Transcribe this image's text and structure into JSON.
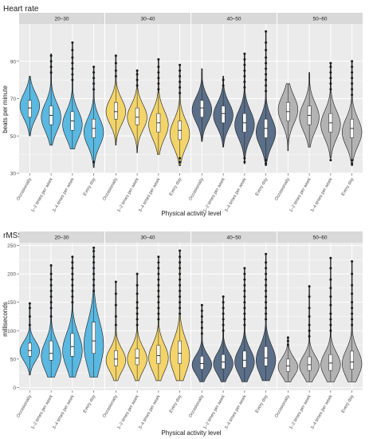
{
  "chart_data": [
    {
      "type": "violin",
      "title": "Heart rate",
      "xlabel": "Physical activity level",
      "ylabel": "beats per minute",
      "ylim": [
        30,
        110
      ],
      "yticks": [
        30,
        50,
        70,
        90
      ],
      "categories": [
        "Occasionally",
        "1–2 times per week",
        "3–4 times per week",
        "Every day"
      ],
      "facets": [
        {
          "label": "20–30",
          "color": "#5bb8e0",
          "groups": [
            {
              "min": 50,
              "q1": 60,
              "median": 65,
              "q3": 69,
              "max": 82,
              "mode": 66,
              "outliers": []
            },
            {
              "min": 45,
              "q1": 56,
              "median": 61,
              "q3": 66,
              "max": 94,
              "mode": 60,
              "outliers": [
                84,
                87,
                90,
                93
              ]
            },
            {
              "min": 43,
              "q1": 53,
              "median": 58,
              "q3": 63,
              "max": 100,
              "mode": 56,
              "outliers": [
                80,
                83,
                86,
                89,
                92,
                96,
                100
              ]
            },
            {
              "min": 33,
              "q1": 49,
              "median": 54,
              "q3": 59,
              "max": 87,
              "mode": 52,
              "outliers": [
                36,
                75,
                78,
                81,
                84,
                87
              ]
            }
          ]
        },
        {
          "label": "30–40",
          "color": "#f2d46b",
          "groups": [
            {
              "min": 45,
              "q1": 59,
              "median": 63,
              "q3": 68,
              "max": 93,
              "mode": 63,
              "outliers": [
                82,
                85,
                89,
                93
              ]
            },
            {
              "min": 41,
              "q1": 56,
              "median": 60,
              "q3": 65,
              "max": 85,
              "mode": 60,
              "outliers": [
                77,
                80,
                83,
                85
              ]
            },
            {
              "min": 40,
              "q1": 52,
              "median": 57,
              "q3": 62,
              "max": 91,
              "mode": 56,
              "outliers": [
                75,
                78,
                81,
                84,
                87,
                91
              ]
            },
            {
              "min": 34,
              "q1": 48,
              "median": 53,
              "q3": 58,
              "max": 88,
              "mode": 51,
              "outliers": [
                36,
                38,
                73,
                76,
                79,
                82,
                85,
                88
              ]
            }
          ]
        },
        {
          "label": "40–50",
          "color": "#5b6f89",
          "groups": [
            {
              "min": 47,
              "q1": 60,
              "median": 65,
              "q3": 69,
              "max": 86,
              "mode": 64,
              "outliers": []
            },
            {
              "min": 44,
              "q1": 57,
              "median": 62,
              "q3": 66,
              "max": 82,
              "mode": 61,
              "outliers": [
                77,
                80
              ]
            },
            {
              "min": 35,
              "q1": 52,
              "median": 57,
              "q3": 62,
              "max": 94,
              "mode": 56,
              "outliers": [
                36,
                38,
                76,
                79,
                82,
                85,
                88,
                91,
                94
              ]
            },
            {
              "min": 34,
              "q1": 49,
              "median": 54,
              "q3": 59,
              "max": 106,
              "mode": 52,
              "outliers": [
                35,
                37,
                74,
                77,
                80,
                83,
                86,
                89,
                92,
                96,
                100,
                106
              ]
            }
          ]
        },
        {
          "label": "50–60",
          "color": "#b3b3b3",
          "groups": [
            {
              "min": 42,
              "q1": 58,
              "median": 63,
              "q3": 68,
              "max": 78,
              "mode": 64,
              "outliers": []
            },
            {
              "min": 44,
              "q1": 56,
              "median": 61,
              "q3": 66,
              "max": 84,
              "mode": 60,
              "outliers": []
            },
            {
              "min": 38,
              "q1": 52,
              "median": 57,
              "q3": 62,
              "max": 89,
              "mode": 56,
              "outliers": [
                37,
                75,
                78,
                81,
                84,
                87,
                89
              ]
            },
            {
              "min": 34,
              "q1": 49,
              "median": 54,
              "q3": 59,
              "max": 90,
              "mode": 52,
              "outliers": [
                35,
                37,
                72,
                75,
                78,
                81,
                84,
                87,
                90
              ]
            }
          ]
        }
      ]
    },
    {
      "type": "violin",
      "title": "rMSSD",
      "xlabel": "Physical activity level",
      "ylabel": "milliseconds",
      "ylim": [
        -5,
        255
      ],
      "yticks": [
        0,
        50,
        100,
        150,
        200,
        250
      ],
      "categories": [
        "Occasionally",
        "1–2 times per week",
        "3–4 times per week",
        "Every day"
      ],
      "facets": [
        {
          "label": "20–30",
          "color": "#5bb8e0",
          "groups": [
            {
              "min": 22,
              "q1": 55,
              "median": 65,
              "q3": 78,
              "max": 148,
              "mode": 64,
              "outliers": [
                110,
                125,
                140,
                148
              ]
            },
            {
              "min": 18,
              "q1": 48,
              "median": 60,
              "q3": 82,
              "max": 215,
              "mode": 55,
              "outliers": [
                125,
                140,
                150,
                160,
                170,
                180,
                190,
                200,
                215
              ]
            },
            {
              "min": 18,
              "q1": 55,
              "median": 72,
              "q3": 95,
              "max": 230,
              "mode": 65,
              "outliers": [
                150,
                160,
                170,
                180,
                190,
                200,
                210,
                220,
                230
              ]
            },
            {
              "min": 18,
              "q1": 60,
              "median": 82,
              "q3": 115,
              "max": 246,
              "mode": 75,
              "outliers": [
                170,
                180,
                190,
                200,
                210,
                220,
                230,
                240,
                246
              ]
            }
          ]
        },
        {
          "label": "30–40",
          "color": "#f2d46b",
          "groups": [
            {
              "min": 12,
              "q1": 38,
              "median": 50,
              "q3": 65,
              "max": 186,
              "mode": 48,
              "outliers": [
                110,
                125,
                145,
                165,
                186
              ]
            },
            {
              "min": 12,
              "q1": 40,
              "median": 52,
              "q3": 68,
              "max": 200,
              "mode": 50,
              "outliers": [
                110,
                120,
                130,
                140,
                150,
                165,
                180,
                200
              ]
            },
            {
              "min": 12,
              "q1": 42,
              "median": 56,
              "q3": 74,
              "max": 230,
              "mode": 52,
              "outliers": [
                120,
                130,
                140,
                150,
                160,
                170,
                180,
                190,
                200,
                210,
                220,
                230
              ]
            },
            {
              "min": 12,
              "q1": 42,
              "median": 60,
              "q3": 82,
              "max": 241,
              "mode": 55,
              "outliers": [
                130,
                140,
                150,
                160,
                170,
                180,
                190,
                200,
                210,
                220,
                230,
                241
              ]
            }
          ]
        },
        {
          "label": "40–50",
          "color": "#5b6f89",
          "groups": [
            {
              "min": 10,
              "q1": 32,
              "median": 42,
              "q3": 55,
              "max": 145,
              "mode": 40,
              "outliers": [
                95,
                105,
                115,
                125,
                135,
                145
              ]
            },
            {
              "min": 10,
              "q1": 33,
              "median": 45,
              "q3": 58,
              "max": 160,
              "mode": 42,
              "outliers": [
                100,
                110,
                120,
                130,
                140,
                150,
                160
              ]
            },
            {
              "min": 10,
              "q1": 35,
              "median": 48,
              "q3": 64,
              "max": 210,
              "mode": 45,
              "outliers": [
                110,
                120,
                130,
                140,
                150,
                160,
                170,
                180,
                190,
                200,
                210
              ]
            },
            {
              "min": 12,
              "q1": 38,
              "median": 52,
              "q3": 72,
              "max": 235,
              "mode": 48,
              "outliers": [
                120,
                130,
                140,
                150,
                160,
                170,
                180,
                190,
                200,
                210,
                220,
                235
              ]
            }
          ]
        },
        {
          "label": "50–60",
          "color": "#b3b3b3",
          "groups": [
            {
              "min": 10,
              "q1": 28,
              "median": 38,
              "q3": 50,
              "max": 88,
              "mode": 36,
              "outliers": [
                75,
                82,
                88
              ]
            },
            {
              "min": 10,
              "q1": 30,
              "median": 40,
              "q3": 54,
              "max": 178,
              "mode": 38,
              "outliers": [
                90,
                100,
                110,
                125,
                140,
                160,
                178
              ]
            },
            {
              "min": 10,
              "q1": 30,
              "median": 43,
              "q3": 58,
              "max": 228,
              "mode": 40,
              "outliers": [
                100,
                110,
                120,
                130,
                145,
                160,
                175,
                190,
                210,
                228
              ]
            },
            {
              "min": 10,
              "q1": 32,
              "median": 45,
              "q3": 64,
              "max": 222,
              "mode": 42,
              "outliers": [
                110,
                120,
                130,
                140,
                150,
                165,
                180,
                200,
                222
              ]
            }
          ]
        }
      ]
    }
  ]
}
